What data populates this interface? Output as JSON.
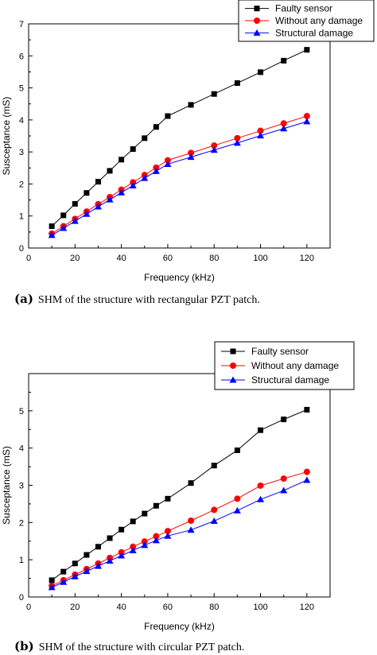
{
  "chart_data": [
    {
      "type": "line",
      "caption_label": "(a)",
      "caption_text": "SHM of the structure with rectangular PZT patch.",
      "xlabel": "Frequency (kHz)",
      "ylabel": "Susceptance (mS)",
      "xlim": [
        0,
        130
      ],
      "ylim": [
        0,
        7
      ],
      "xticks": [
        0,
        20,
        40,
        60,
        80,
        100,
        120
      ],
      "yticks": [
        0,
        1,
        2,
        3,
        4,
        5,
        6,
        7
      ],
      "legend_position": "top-right",
      "x": [
        10,
        15,
        20,
        25,
        30,
        35,
        40,
        45,
        50,
        55,
        60,
        70,
        80,
        90,
        100,
        110,
        120
      ],
      "series": [
        {
          "name": "Faulty sensor",
          "marker": "square",
          "color": "#000000",
          "values": [
            0.68,
            1.02,
            1.38,
            1.72,
            2.07,
            2.41,
            2.76,
            3.09,
            3.43,
            3.78,
            4.12,
            4.47,
            4.81,
            5.15,
            5.49,
            5.85,
            6.19
          ]
        },
        {
          "name": "Without any damage",
          "marker": "circle",
          "color": "#ff0000",
          "values": [
            0.45,
            0.68,
            0.91,
            1.14,
            1.37,
            1.59,
            1.82,
            2.05,
            2.28,
            2.51,
            2.74,
            2.97,
            3.2,
            3.43,
            3.66,
            3.89,
            4.12
          ]
        },
        {
          "name": "Structural damage",
          "marker": "triangle",
          "color": "#0000ff",
          "values": [
            0.4,
            0.62,
            0.84,
            1.06,
            1.29,
            1.51,
            1.73,
            1.95,
            2.18,
            2.4,
            2.62,
            2.84,
            3.06,
            3.28,
            3.51,
            3.73,
            3.95
          ]
        }
      ]
    },
    {
      "type": "line",
      "caption_label": "(b)",
      "caption_text": "SHM of the structure with circular PZT patch.",
      "xlabel": "Frequency (kHz)",
      "ylabel": "Susceptance (mS)",
      "xlim": [
        0,
        130
      ],
      "ylim": [
        0,
        6
      ],
      "xticks": [
        0,
        20,
        40,
        60,
        80,
        100,
        120
      ],
      "yticks": [
        0,
        1,
        2,
        3,
        4,
        5
      ],
      "legend_position": "top-right",
      "x": [
        10,
        15,
        20,
        25,
        30,
        35,
        40,
        45,
        50,
        55,
        60,
        70,
        80,
        90,
        100,
        110,
        120
      ],
      "series": [
        {
          "name": "Faulty sensor",
          "marker": "square",
          "color": "#000000",
          "values": [
            0.45,
            0.68,
            0.9,
            1.13,
            1.35,
            1.58,
            1.81,
            2.03,
            2.24,
            2.45,
            2.64,
            3.06,
            3.53,
            3.94,
            4.48,
            4.77,
            5.03
          ]
        },
        {
          "name": "Without any damage",
          "marker": "circle",
          "color": "#ff0000",
          "values": [
            0.3,
            0.45,
            0.6,
            0.75,
            0.9,
            1.05,
            1.2,
            1.35,
            1.49,
            1.63,
            1.77,
            2.05,
            2.34,
            2.64,
            2.99,
            3.18,
            3.36
          ]
        },
        {
          "name": "Structural damage",
          "marker": "triangle",
          "color": "#0000ff",
          "values": [
            0.26,
            0.4,
            0.55,
            0.69,
            0.83,
            0.97,
            1.11,
            1.25,
            1.39,
            1.52,
            1.64,
            1.8,
            2.04,
            2.32,
            2.62,
            2.86,
            3.14
          ]
        }
      ]
    }
  ]
}
